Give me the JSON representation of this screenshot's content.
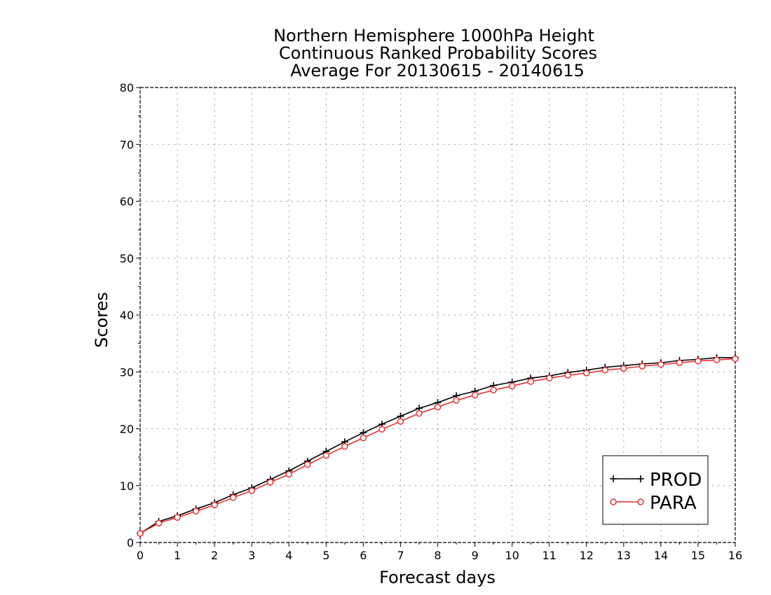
{
  "chart_data": {
    "type": "line",
    "title": [
      "Northern Hemisphere 1000hPa Height",
      "Continuous Ranked Probability Scores",
      "Average For 20130615 - 20140615"
    ],
    "xlabel": "Forecast days",
    "ylabel": "Scores",
    "xlim": [
      0,
      16
    ],
    "ylim": [
      0,
      80
    ],
    "x_ticks": [
      "0",
      "1",
      "2",
      "3",
      "4",
      "5",
      "6",
      "7",
      "8",
      "9",
      "10",
      "11",
      "12",
      "13",
      "14",
      "15",
      "16"
    ],
    "y_ticks": [
      "0",
      "10",
      "20",
      "30",
      "40",
      "50",
      "60",
      "70",
      "80"
    ],
    "grid": true,
    "legend_position": "bottom-right",
    "x": [
      0,
      0.5,
      1,
      1.5,
      2,
      2.5,
      3,
      3.5,
      4,
      4.5,
      5,
      5.5,
      6,
      6.5,
      7,
      7.5,
      8,
      8.5,
      9,
      9.5,
      10,
      10.5,
      11,
      11.5,
      12,
      12.5,
      13,
      13.5,
      14,
      14.5,
      15,
      15.5,
      16
    ],
    "series": [
      {
        "name": "PROD",
        "color": "#000000",
        "marker": "plus",
        "values": [
          1.6,
          3.7,
          4.7,
          5.9,
          7.0,
          8.4,
          9.6,
          11.1,
          12.6,
          14.3,
          16.0,
          17.7,
          19.3,
          20.8,
          22.2,
          23.6,
          24.6,
          25.8,
          26.6,
          27.6,
          28.2,
          28.9,
          29.3,
          29.9,
          30.3,
          30.8,
          31.1,
          31.4,
          31.6,
          32.0,
          32.2,
          32.5,
          32.5
        ]
      },
      {
        "name": "PARA",
        "color": "#e83030",
        "marker": "circle",
        "values": [
          1.6,
          3.4,
          4.4,
          5.5,
          6.6,
          7.9,
          9.1,
          10.6,
          12.0,
          13.7,
          15.3,
          16.9,
          18.4,
          19.9,
          21.3,
          22.7,
          23.8,
          25.0,
          25.9,
          26.8,
          27.5,
          28.3,
          28.9,
          29.4,
          29.8,
          30.3,
          30.6,
          31.0,
          31.3,
          31.6,
          31.9,
          32.1,
          32.3
        ]
      }
    ]
  }
}
